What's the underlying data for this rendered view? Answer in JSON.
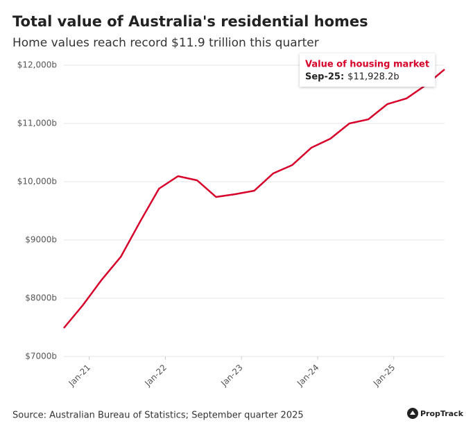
{
  "chart_data": {
    "type": "line",
    "title": "Total value of Australia's residential homes",
    "subtitle": "Home values reach record $11.9 trillion this quarter",
    "source": "Source: Australian Bureau of Statistics; September quarter 2025",
    "brand": "PropTrack",
    "x": [
      "2020-09",
      "2020-12",
      "2021-03",
      "2021-06",
      "2021-09",
      "2021-12",
      "2022-03",
      "2022-06",
      "2022-09",
      "2022-12",
      "2023-03",
      "2023-06",
      "2023-09",
      "2023-12",
      "2024-03",
      "2024-06",
      "2024-09",
      "2024-12",
      "2025-03",
      "2025-06",
      "2025-09"
    ],
    "series": [
      {
        "name": "Value of housing market",
        "color": "#d6002a",
        "values": [
          7488,
          7881,
          8321,
          8714,
          9310,
          9881,
          10095,
          10024,
          9738,
          9786,
          9845,
          10143,
          10286,
          10583,
          10738,
          11000,
          11071,
          11333,
          11429,
          11655,
          11928.2
        ]
      }
    ],
    "tooltip": {
      "date": "Sep-25:",
      "text": "$11,928.2b"
    },
    "xlim": [
      "2020-09",
      "2025-09"
    ],
    "xticks": [
      {
        "value": "2021-01",
        "label": "Jan-21"
      },
      {
        "value": "2022-01",
        "label": "Jan-22"
      },
      {
        "value": "2023-01",
        "label": "Jan-23"
      },
      {
        "value": "2024-01",
        "label": "Jan-24"
      },
      {
        "value": "2025-01",
        "label": "Jan-25"
      }
    ],
    "ylim": [
      7000,
      12000
    ],
    "yticks": [
      {
        "value": 7000,
        "label": "$7000b"
      },
      {
        "value": 8000,
        "label": "$8000b"
      },
      {
        "value": 9000,
        "label": "$9000b"
      },
      {
        "value": 10000,
        "label": "$10,000b"
      },
      {
        "value": 11000,
        "label": "$11,000b"
      },
      {
        "value": 12000,
        "label": "$12,000b"
      }
    ],
    "grid": true
  }
}
